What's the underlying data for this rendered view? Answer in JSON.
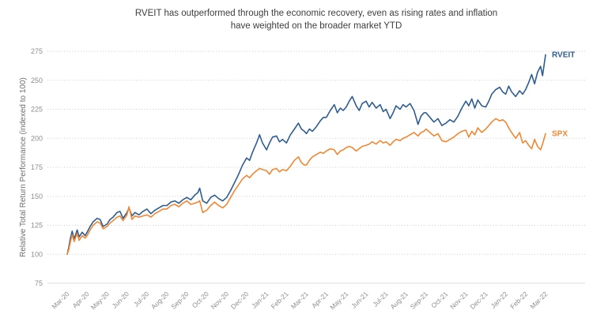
{
  "title": {
    "line1": "RVEIT has outperformed through the economic recovery, even as rising rates and inflation",
    "line2": "have weighted on the broader market YTD"
  },
  "y_axis": {
    "label": "Relative Total Return Performance (indexed to 100)",
    "ticks": [
      75,
      100,
      125,
      150,
      175,
      200,
      225,
      250,
      275
    ]
  },
  "x_axis": {
    "tick_labels": [
      "Mar-20",
      "Apr-20",
      "May-20",
      "Jun-20",
      "Jul-20",
      "Aug-20",
      "Sep-20",
      "Oct-20",
      "Nov-20",
      "Dec-20",
      "Jan-21",
      "Feb-21",
      "Mar-21",
      "Apr-21",
      "May-21",
      "Jun-21",
      "Jul-21",
      "Aug-21",
      "Sep-21",
      "Oct-21",
      "Nov-21",
      "Dec-21",
      "Jan-22",
      "Feb-22",
      "Mar-22"
    ]
  },
  "colors": {
    "rveit": "#2e5d92",
    "spx": "#f28732",
    "grid": "#cccccc",
    "baseline": "#dddddd",
    "tick_text": "#8e8e8e",
    "title_text": "#3d3d3d"
  },
  "chart_data": {
    "type": "line",
    "title": "RVEIT has outperformed through the economic recovery, even as rising rates and inflation have weighted on the broader market YTD",
    "xlabel": "",
    "ylabel": "Relative Total Return Performance (indexed to 100)",
    "ylim": [
      75,
      275
    ],
    "grid": "horizontal-dotted",
    "legend_position": "end-of-line labels",
    "x_unit": "months since Mar-2020",
    "categories": [
      "Mar-20",
      "Apr-20",
      "May-20",
      "Jun-20",
      "Jul-20",
      "Aug-20",
      "Sep-20",
      "Oct-20",
      "Nov-20",
      "Dec-20",
      "Jan-21",
      "Feb-21",
      "Mar-21",
      "Apr-21",
      "May-21",
      "Jun-21",
      "Jul-21",
      "Aug-21",
      "Sep-21",
      "Oct-21",
      "Nov-21",
      "Dec-21",
      "Jan-22",
      "Feb-22",
      "Mar-22"
    ],
    "series": [
      {
        "name": "RVEIT",
        "color": "#2e5d92",
        "points": [
          [
            0,
            100
          ],
          [
            0.08,
            106
          ],
          [
            0.15,
            113
          ],
          [
            0.25,
            120
          ],
          [
            0.35,
            113
          ],
          [
            0.5,
            121
          ],
          [
            0.6,
            115
          ],
          [
            0.75,
            119
          ],
          [
            0.9,
            116
          ],
          [
            1,
            119
          ],
          [
            1.15,
            124
          ],
          [
            1.3,
            128
          ],
          [
            1.5,
            131
          ],
          [
            1.65,
            130
          ],
          [
            1.8,
            124
          ],
          [
            2,
            126
          ],
          [
            2.15,
            130
          ],
          [
            2.3,
            132
          ],
          [
            2.5,
            136
          ],
          [
            2.65,
            137
          ],
          [
            2.8,
            131
          ],
          [
            3,
            136
          ],
          [
            3.1,
            140
          ],
          [
            3.25,
            133
          ],
          [
            3.4,
            136
          ],
          [
            3.6,
            134
          ],
          [
            3.8,
            137
          ],
          [
            4,
            139
          ],
          [
            4.2,
            135
          ],
          [
            4.4,
            138
          ],
          [
            4.6,
            140
          ],
          [
            4.8,
            142
          ],
          [
            5,
            142
          ],
          [
            5.2,
            145
          ],
          [
            5.4,
            146
          ],
          [
            5.6,
            144
          ],
          [
            5.8,
            147
          ],
          [
            6,
            149
          ],
          [
            6.2,
            147
          ],
          [
            6.4,
            151
          ],
          [
            6.55,
            153
          ],
          [
            6.65,
            157
          ],
          [
            6.8,
            146
          ],
          [
            7,
            144
          ],
          [
            7.2,
            149
          ],
          [
            7.4,
            151
          ],
          [
            7.6,
            148
          ],
          [
            7.8,
            146
          ],
          [
            8,
            149
          ],
          [
            8.2,
            155
          ],
          [
            8.4,
            162
          ],
          [
            8.6,
            169
          ],
          [
            8.8,
            177
          ],
          [
            9,
            183
          ],
          [
            9.15,
            181
          ],
          [
            9.3,
            188
          ],
          [
            9.5,
            196
          ],
          [
            9.65,
            203
          ],
          [
            9.8,
            196
          ],
          [
            10,
            190
          ],
          [
            10.15,
            196
          ],
          [
            10.3,
            201
          ],
          [
            10.5,
            202
          ],
          [
            10.65,
            197
          ],
          [
            10.8,
            199
          ],
          [
            11,
            196
          ],
          [
            11.2,
            203
          ],
          [
            11.4,
            208
          ],
          [
            11.6,
            213
          ],
          [
            11.75,
            208
          ],
          [
            11.9,
            206
          ],
          [
            12,
            204
          ],
          [
            12.15,
            208
          ],
          [
            12.3,
            206
          ],
          [
            12.5,
            210
          ],
          [
            12.7,
            215
          ],
          [
            12.85,
            218
          ],
          [
            13,
            218
          ],
          [
            13.2,
            224
          ],
          [
            13.4,
            229
          ],
          [
            13.55,
            222
          ],
          [
            13.7,
            226
          ],
          [
            13.85,
            224
          ],
          [
            14,
            227
          ],
          [
            14.15,
            232
          ],
          [
            14.3,
            236
          ],
          [
            14.5,
            228
          ],
          [
            14.65,
            224
          ],
          [
            14.8,
            230
          ],
          [
            15,
            232
          ],
          [
            15.15,
            227
          ],
          [
            15.3,
            231
          ],
          [
            15.5,
            226
          ],
          [
            15.7,
            229
          ],
          [
            15.85,
            223
          ],
          [
            16,
            225
          ],
          [
            16.2,
            217
          ],
          [
            16.35,
            222
          ],
          [
            16.5,
            228
          ],
          [
            16.7,
            225
          ],
          [
            16.85,
            229
          ],
          [
            17,
            227
          ],
          [
            17.2,
            230
          ],
          [
            17.4,
            224
          ],
          [
            17.6,
            212
          ],
          [
            17.75,
            219
          ],
          [
            17.9,
            222
          ],
          [
            18,
            222
          ],
          [
            18.2,
            218
          ],
          [
            18.4,
            214
          ],
          [
            18.6,
            217
          ],
          [
            18.8,
            211
          ],
          [
            19,
            213
          ],
          [
            19.2,
            216
          ],
          [
            19.4,
            214
          ],
          [
            19.6,
            219
          ],
          [
            19.8,
            226
          ],
          [
            20,
            232
          ],
          [
            20.15,
            228
          ],
          [
            20.3,
            234
          ],
          [
            20.45,
            226
          ],
          [
            20.6,
            233
          ],
          [
            20.8,
            228
          ],
          [
            21,
            227
          ],
          [
            21.15,
            232
          ],
          [
            21.3,
            238
          ],
          [
            21.5,
            242
          ],
          [
            21.7,
            244
          ],
          [
            21.85,
            240
          ],
          [
            22,
            238
          ],
          [
            22.15,
            245
          ],
          [
            22.3,
            240
          ],
          [
            22.5,
            236
          ],
          [
            22.7,
            241
          ],
          [
            22.85,
            238
          ],
          [
            23,
            242
          ],
          [
            23.15,
            248
          ],
          [
            23.3,
            255
          ],
          [
            23.45,
            247
          ],
          [
            23.6,
            257
          ],
          [
            23.75,
            262
          ],
          [
            23.85,
            254
          ],
          [
            24,
            272
          ]
        ]
      },
      {
        "name": "SPX",
        "color": "#f28732",
        "points": [
          [
            0,
            100
          ],
          [
            0.08,
            104
          ],
          [
            0.15,
            110
          ],
          [
            0.25,
            117
          ],
          [
            0.35,
            111
          ],
          [
            0.5,
            118
          ],
          [
            0.6,
            112
          ],
          [
            0.75,
            116
          ],
          [
            0.9,
            114
          ],
          [
            1,
            116
          ],
          [
            1.15,
            121
          ],
          [
            1.3,
            125
          ],
          [
            1.5,
            128
          ],
          [
            1.65,
            127
          ],
          [
            1.8,
            122
          ],
          [
            2,
            124
          ],
          [
            2.15,
            127
          ],
          [
            2.3,
            129
          ],
          [
            2.5,
            132
          ],
          [
            2.65,
            133
          ],
          [
            2.8,
            129
          ],
          [
            3,
            134
          ],
          [
            3.1,
            141
          ],
          [
            3.25,
            130
          ],
          [
            3.4,
            133
          ],
          [
            3.6,
            132
          ],
          [
            3.8,
            133
          ],
          [
            4,
            134
          ],
          [
            4.2,
            132
          ],
          [
            4.4,
            135
          ],
          [
            4.6,
            137
          ],
          [
            4.8,
            139
          ],
          [
            5,
            139
          ],
          [
            5.2,
            142
          ],
          [
            5.4,
            143
          ],
          [
            5.6,
            141
          ],
          [
            5.8,
            144
          ],
          [
            6,
            146
          ],
          [
            6.2,
            143
          ],
          [
            6.4,
            144
          ],
          [
            6.55,
            145
          ],
          [
            6.65,
            146
          ],
          [
            6.8,
            136
          ],
          [
            7,
            138
          ],
          [
            7.2,
            142
          ],
          [
            7.4,
            145
          ],
          [
            7.6,
            142
          ],
          [
            7.8,
            140
          ],
          [
            8,
            143
          ],
          [
            8.2,
            149
          ],
          [
            8.4,
            155
          ],
          [
            8.6,
            160
          ],
          [
            8.8,
            165
          ],
          [
            9,
            168
          ],
          [
            9.15,
            166
          ],
          [
            9.3,
            169
          ],
          [
            9.5,
            172
          ],
          [
            9.65,
            174
          ],
          [
            9.8,
            173
          ],
          [
            10,
            172
          ],
          [
            10.15,
            169
          ],
          [
            10.3,
            173
          ],
          [
            10.5,
            174
          ],
          [
            10.65,
            171
          ],
          [
            10.8,
            173
          ],
          [
            11,
            172
          ],
          [
            11.2,
            176
          ],
          [
            11.4,
            181
          ],
          [
            11.6,
            184
          ],
          [
            11.75,
            179
          ],
          [
            11.9,
            177
          ],
          [
            12,
            177
          ],
          [
            12.15,
            181
          ],
          [
            12.3,
            184
          ],
          [
            12.5,
            186
          ],
          [
            12.7,
            188
          ],
          [
            12.85,
            187
          ],
          [
            13,
            189
          ],
          [
            13.2,
            191
          ],
          [
            13.4,
            190
          ],
          [
            13.55,
            186
          ],
          [
            13.7,
            189
          ],
          [
            13.85,
            190
          ],
          [
            14,
            192
          ],
          [
            14.15,
            193
          ],
          [
            14.3,
            192
          ],
          [
            14.5,
            189
          ],
          [
            14.65,
            191
          ],
          [
            14.8,
            193
          ],
          [
            15,
            194
          ],
          [
            15.15,
            195
          ],
          [
            15.3,
            197
          ],
          [
            15.5,
            195
          ],
          [
            15.7,
            198
          ],
          [
            15.85,
            196
          ],
          [
            16,
            197
          ],
          [
            16.2,
            194
          ],
          [
            16.35,
            197
          ],
          [
            16.5,
            199
          ],
          [
            16.7,
            198
          ],
          [
            16.85,
            200
          ],
          [
            17,
            201
          ],
          [
            17.2,
            203
          ],
          [
            17.4,
            205
          ],
          [
            17.6,
            202
          ],
          [
            17.75,
            205
          ],
          [
            17.9,
            206
          ],
          [
            18,
            208
          ],
          [
            18.2,
            205
          ],
          [
            18.4,
            202
          ],
          [
            18.6,
            204
          ],
          [
            18.8,
            198
          ],
          [
            19,
            197
          ],
          [
            19.2,
            199
          ],
          [
            19.4,
            201
          ],
          [
            19.6,
            204
          ],
          [
            19.8,
            206
          ],
          [
            20,
            207
          ],
          [
            20.15,
            201
          ],
          [
            20.3,
            206
          ],
          [
            20.45,
            203
          ],
          [
            20.6,
            209
          ],
          [
            20.8,
            205
          ],
          [
            21,
            208
          ],
          [
            21.15,
            211
          ],
          [
            21.3,
            214
          ],
          [
            21.5,
            217
          ],
          [
            21.7,
            215
          ],
          [
            21.85,
            216
          ],
          [
            22,
            214
          ],
          [
            22.15,
            209
          ],
          [
            22.3,
            205
          ],
          [
            22.5,
            200
          ],
          [
            22.7,
            205
          ],
          [
            22.85,
            196
          ],
          [
            23,
            198
          ],
          [
            23.15,
            194
          ],
          [
            23.3,
            191
          ],
          [
            23.45,
            199
          ],
          [
            23.6,
            193
          ],
          [
            23.75,
            190
          ],
          [
            23.85,
            195
          ],
          [
            24,
            204
          ]
        ]
      }
    ]
  }
}
